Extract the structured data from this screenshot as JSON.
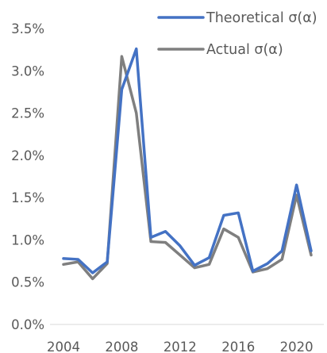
{
  "chart_data": {
    "type": "line",
    "title": "",
    "xlabel": "",
    "ylabel": "",
    "x": [
      2004,
      2005,
      2006,
      2007,
      2008,
      2009,
      2010,
      2011,
      2012,
      2013,
      2014,
      2015,
      2016,
      2017,
      2018,
      2019,
      2020,
      2021
    ],
    "x_ticks": [
      "2004",
      "2008",
      "2012",
      "2016",
      "2020"
    ],
    "y_ticks": [
      "0.0%",
      "0.5%",
      "1.0%",
      "1.5%",
      "2.0%",
      "2.5%",
      "3.0%",
      "3.5%"
    ],
    "ylim": [
      0,
      3.5
    ],
    "y_unit": "%",
    "grid": false,
    "legend_position": "top-right",
    "series": [
      {
        "name": "Theoretical σ(α)",
        "color": "#4472C4",
        "values": [
          0.78,
          0.77,
          0.61,
          0.74,
          2.78,
          3.26,
          1.03,
          1.1,
          0.93,
          0.7,
          0.79,
          1.29,
          1.32,
          0.63,
          0.72,
          0.87,
          1.65,
          0.87
        ]
      },
      {
        "name": "Actual σ(α)",
        "color": "#7F7F7F",
        "values": [
          0.71,
          0.74,
          0.54,
          0.72,
          3.17,
          2.5,
          0.98,
          0.97,
          0.82,
          0.67,
          0.71,
          1.13,
          1.03,
          0.62,
          0.66,
          0.77,
          1.53,
          0.82
        ]
      }
    ]
  }
}
